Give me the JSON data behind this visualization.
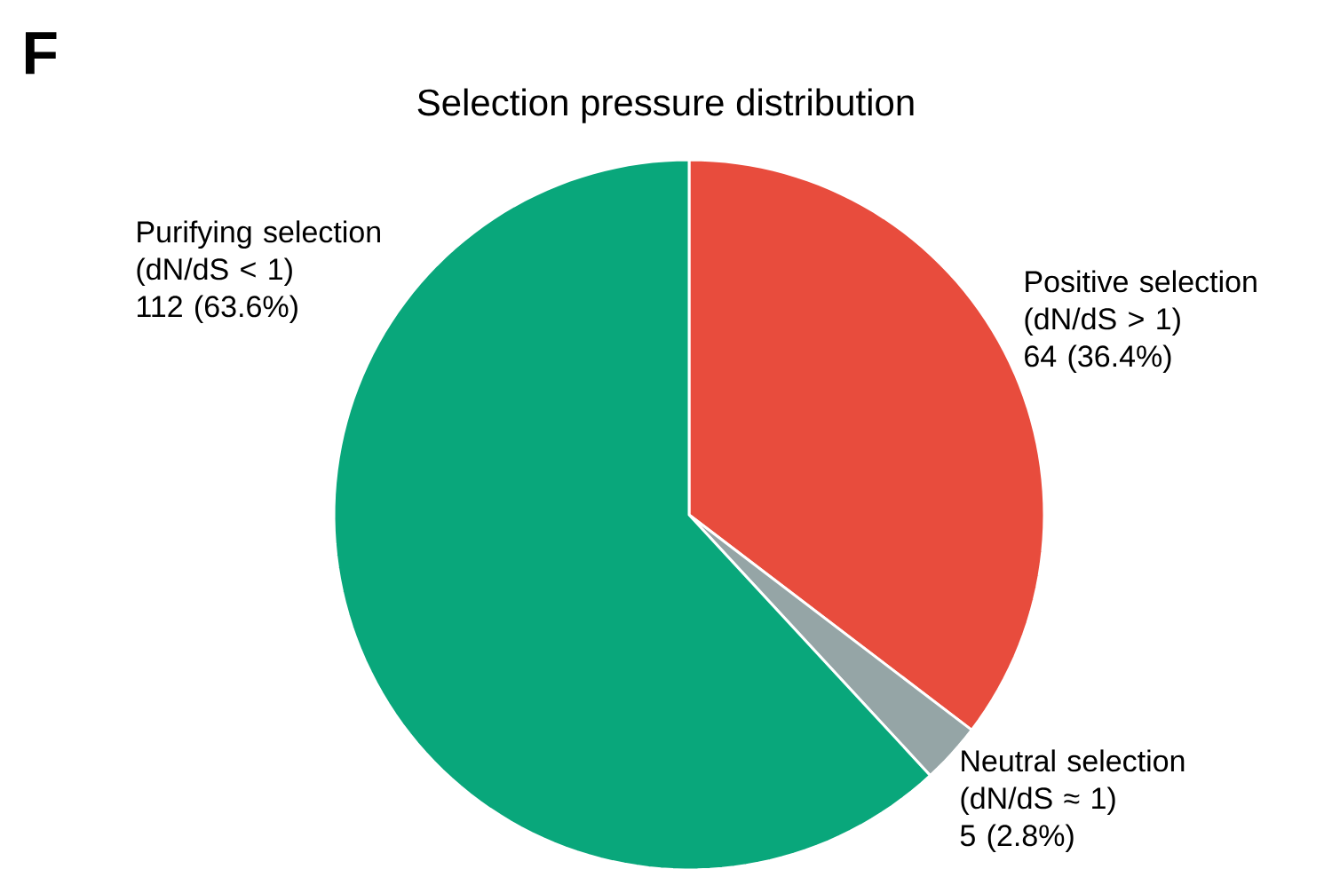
{
  "chart_data": {
    "type": "pie",
    "title": "Selection pressure distribution",
    "categories": [
      "Positive selection (dN/dS > 1)",
      "Neutral selection (dN/dS ≈ 1)",
      "Purifying selection (dN/dS < 1)"
    ],
    "values": [
      64,
      5,
      112
    ],
    "value_labels": [
      "64 (36.4%)",
      "5 (2.8%)",
      "112 (63.6%)"
    ],
    "colors": [
      "#e84c3d",
      "#95a5a6",
      "#09a77b"
    ],
    "annotations": [
      "F"
    ]
  }
}
